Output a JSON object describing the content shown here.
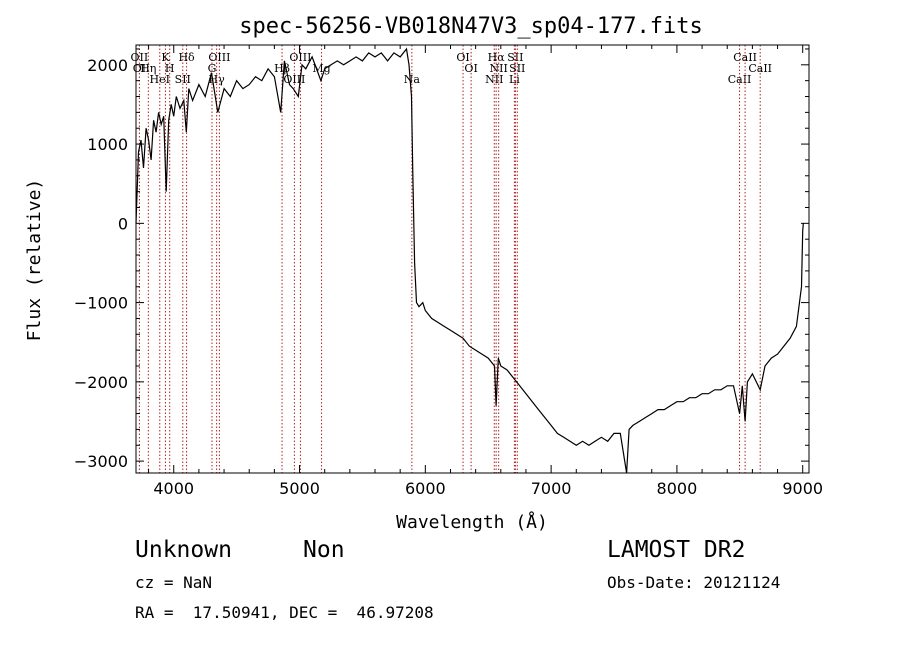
{
  "chart_data": {
    "type": "line",
    "title": "spec-56256-VB018N47V3_sp04-177.fits",
    "xlabel": "Wavelength (Å)",
    "ylabel": "Flux (relative)",
    "xlim": [
      3700,
      9050
    ],
    "ylim": [
      -3150,
      2250
    ],
    "x_ticks": [
      4000,
      5000,
      6000,
      7000,
      8000,
      9000
    ],
    "y_ticks": [
      -3000,
      -2000,
      -1000,
      0,
      1000,
      2000
    ],
    "x_tick_labels": [
      "4000",
      "5000",
      "6000",
      "7000",
      "8000",
      "9000"
    ],
    "y_tick_labels": [
      "−3000",
      "−2000",
      "−1000",
      "0",
      "1000",
      "2000"
    ],
    "grid": false,
    "line_color": "#000000",
    "marker_line_color": "#b22222",
    "series": [
      {
        "points": [
          [
            3700,
            0
          ],
          [
            3720,
            900
          ],
          [
            3740,
            1050
          ],
          [
            3760,
            700
          ],
          [
            3780,
            1200
          ],
          [
            3800,
            1050
          ],
          [
            3820,
            800
          ],
          [
            3840,
            1300
          ],
          [
            3860,
            1150
          ],
          [
            3880,
            1400
          ],
          [
            3900,
            1250
          ],
          [
            3920,
            1350
          ],
          [
            3940,
            400
          ],
          [
            3960,
            1300
          ],
          [
            3980,
            1500
          ],
          [
            4000,
            1350
          ],
          [
            4020,
            1600
          ],
          [
            4050,
            1450
          ],
          [
            4080,
            1550
          ],
          [
            4100,
            1150
          ],
          [
            4120,
            1700
          ],
          [
            4150,
            1550
          ],
          [
            4200,
            1750
          ],
          [
            4250,
            1600
          ],
          [
            4300,
            1900
          ],
          [
            4350,
            1400
          ],
          [
            4400,
            1700
          ],
          [
            4450,
            1600
          ],
          [
            4500,
            1800
          ],
          [
            4550,
            1700
          ],
          [
            4600,
            1750
          ],
          [
            4650,
            1850
          ],
          [
            4700,
            1800
          ],
          [
            4750,
            1950
          ],
          [
            4800,
            1850
          ],
          [
            4850,
            1400
          ],
          [
            4880,
            2050
          ],
          [
            4920,
            1750
          ],
          [
            4950,
            1700
          ],
          [
            4990,
            1600
          ],
          [
            5020,
            2000
          ],
          [
            5050,
            1950
          ],
          [
            5100,
            2100
          ],
          [
            5170,
            1800
          ],
          [
            5200,
            1950
          ],
          [
            5250,
            2000
          ],
          [
            5300,
            2050
          ],
          [
            5350,
            2000
          ],
          [
            5400,
            2050
          ],
          [
            5450,
            2100
          ],
          [
            5500,
            2050
          ],
          [
            5550,
            2150
          ],
          [
            5600,
            2100
          ],
          [
            5650,
            2150
          ],
          [
            5700,
            2050
          ],
          [
            5750,
            2150
          ],
          [
            5800,
            2100
          ],
          [
            5850,
            2200
          ],
          [
            5870,
            2000
          ],
          [
            5890,
            1600
          ],
          [
            5900,
            700
          ],
          [
            5915,
            -500
          ],
          [
            5930,
            -1000
          ],
          [
            5950,
            -1050
          ],
          [
            5980,
            -1000
          ],
          [
            6000,
            -1100
          ],
          [
            6050,
            -1200
          ],
          [
            6100,
            -1250
          ],
          [
            6150,
            -1300
          ],
          [
            6200,
            -1350
          ],
          [
            6250,
            -1400
          ],
          [
            6300,
            -1450
          ],
          [
            6350,
            -1550
          ],
          [
            6400,
            -1600
          ],
          [
            6450,
            -1650
          ],
          [
            6500,
            -1700
          ],
          [
            6550,
            -1800
          ],
          [
            6563,
            -2300
          ],
          [
            6580,
            -1700
          ],
          [
            6600,
            -1800
          ],
          [
            6650,
            -1850
          ],
          [
            6700,
            -1950
          ],
          [
            6750,
            -2050
          ],
          [
            6800,
            -2150
          ],
          [
            6850,
            -2250
          ],
          [
            6900,
            -2350
          ],
          [
            6950,
            -2450
          ],
          [
            7000,
            -2550
          ],
          [
            7050,
            -2650
          ],
          [
            7100,
            -2700
          ],
          [
            7150,
            -2750
          ],
          [
            7200,
            -2800
          ],
          [
            7250,
            -2750
          ],
          [
            7300,
            -2800
          ],
          [
            7350,
            -2750
          ],
          [
            7400,
            -2700
          ],
          [
            7450,
            -2750
          ],
          [
            7500,
            -2650
          ],
          [
            7550,
            -2650
          ],
          [
            7600,
            -3150
          ],
          [
            7620,
            -2600
          ],
          [
            7650,
            -2550
          ],
          [
            7700,
            -2500
          ],
          [
            7750,
            -2450
          ],
          [
            7800,
            -2400
          ],
          [
            7850,
            -2350
          ],
          [
            7900,
            -2350
          ],
          [
            7950,
            -2300
          ],
          [
            8000,
            -2250
          ],
          [
            8050,
            -2250
          ],
          [
            8100,
            -2200
          ],
          [
            8150,
            -2200
          ],
          [
            8200,
            -2150
          ],
          [
            8250,
            -2150
          ],
          [
            8300,
            -2100
          ],
          [
            8350,
            -2100
          ],
          [
            8400,
            -2050
          ],
          [
            8450,
            -2050
          ],
          [
            8498,
            -2400
          ],
          [
            8520,
            -2050
          ],
          [
            8542,
            -2500
          ],
          [
            8560,
            -2000
          ],
          [
            8600,
            -1900
          ],
          [
            8662,
            -2100
          ],
          [
            8700,
            -1800
          ],
          [
            8750,
            -1700
          ],
          [
            8800,
            -1650
          ],
          [
            8850,
            -1550
          ],
          [
            8900,
            -1450
          ],
          [
            8950,
            -1300
          ],
          [
            8990,
            -800
          ],
          [
            9000,
            -100
          ],
          [
            9005,
            0
          ]
        ]
      }
    ],
    "line_markers": [
      {
        "x": 3727,
        "labels": [
          "OII",
          "OI"
        ]
      },
      {
        "x": 3798,
        "labels": [
          "Hη"
        ]
      },
      {
        "x": 3889,
        "labels": [
          "HeI"
        ]
      },
      {
        "x": 3934,
        "labels": [
          "K"
        ]
      },
      {
        "x": 3968,
        "labels": [
          "H"
        ]
      },
      {
        "x": 4072,
        "labels": [
          "SII"
        ]
      },
      {
        "x": 4102,
        "labels": [
          "Hδ"
        ]
      },
      {
        "x": 4304,
        "labels": [
          "G"
        ]
      },
      {
        "x": 4341,
        "labels": [
          "Hγ"
        ]
      },
      {
        "x": 4363,
        "labels": [
          "OIII"
        ]
      },
      {
        "x": 4861,
        "labels": [
          "Hβ"
        ]
      },
      {
        "x": 4959,
        "labels": [
          "OIII"
        ]
      },
      {
        "x": 5007,
        "labels": [
          "OIII"
        ]
      },
      {
        "x": 5175,
        "labels": [
          "Mg"
        ]
      },
      {
        "x": 5893,
        "labels": [
          "Na"
        ]
      },
      {
        "x": 6300,
        "labels": [
          "OI"
        ]
      },
      {
        "x": 6364,
        "labels": [
          "OI"
        ]
      },
      {
        "x": 6548,
        "labels": [
          "NII"
        ]
      },
      {
        "x": 6563,
        "labels": [
          "Hα"
        ]
      },
      {
        "x": 6583,
        "labels": [
          "NII"
        ]
      },
      {
        "x": 6708,
        "labels": [
          "Li"
        ]
      },
      {
        "x": 6716,
        "labels": [
          "SII"
        ]
      },
      {
        "x": 6731,
        "labels": [
          "SII"
        ]
      },
      {
        "x": 8498,
        "labels": [
          "CaII"
        ]
      },
      {
        "x": 8542,
        "labels": [
          "CaII"
        ]
      },
      {
        "x": 8662,
        "labels": [
          "CaII"
        ]
      }
    ]
  },
  "footer": {
    "class_label": "Unknown",
    "subclass_label": "Non",
    "survey": "LAMOST DR2",
    "cz": "cz = NaN",
    "obs_date": "Obs-Date: 20121124",
    "coords": "RA =  17.50941, DEC =  46.97208"
  }
}
